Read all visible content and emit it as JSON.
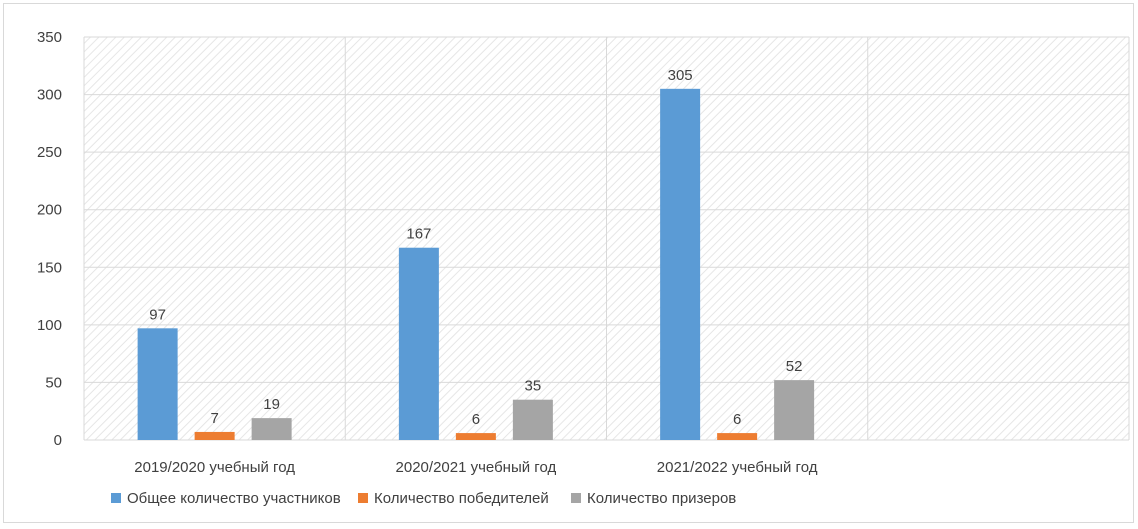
{
  "chart_data": {
    "type": "bar",
    "title": "",
    "xlabel": "",
    "ylabel": "",
    "categories": [
      "2019/2020 учебный год",
      "2020/2021 учебный год",
      "2021/2022 учебный год",
      ""
    ],
    "series": [
      {
        "name": "Общее количество участников",
        "values": [
          97,
          167,
          305,
          null
        ],
        "color": "#5b9bd5"
      },
      {
        "name": "Количество победителей",
        "values": [
          7,
          6,
          6,
          null
        ],
        "color": "#ed7d31"
      },
      {
        "name": "Количество призеров",
        "values": [
          19,
          35,
          52,
          null
        ],
        "color": "#a5a5a5"
      }
    ],
    "ylim": [
      0,
      350
    ],
    "yticks": [
      0,
      50,
      100,
      150,
      200,
      250,
      300,
      350
    ],
    "grid": true,
    "plot_pattern": "diagonal-hatch",
    "data_labels": true,
    "legend_position": "bottom"
  }
}
